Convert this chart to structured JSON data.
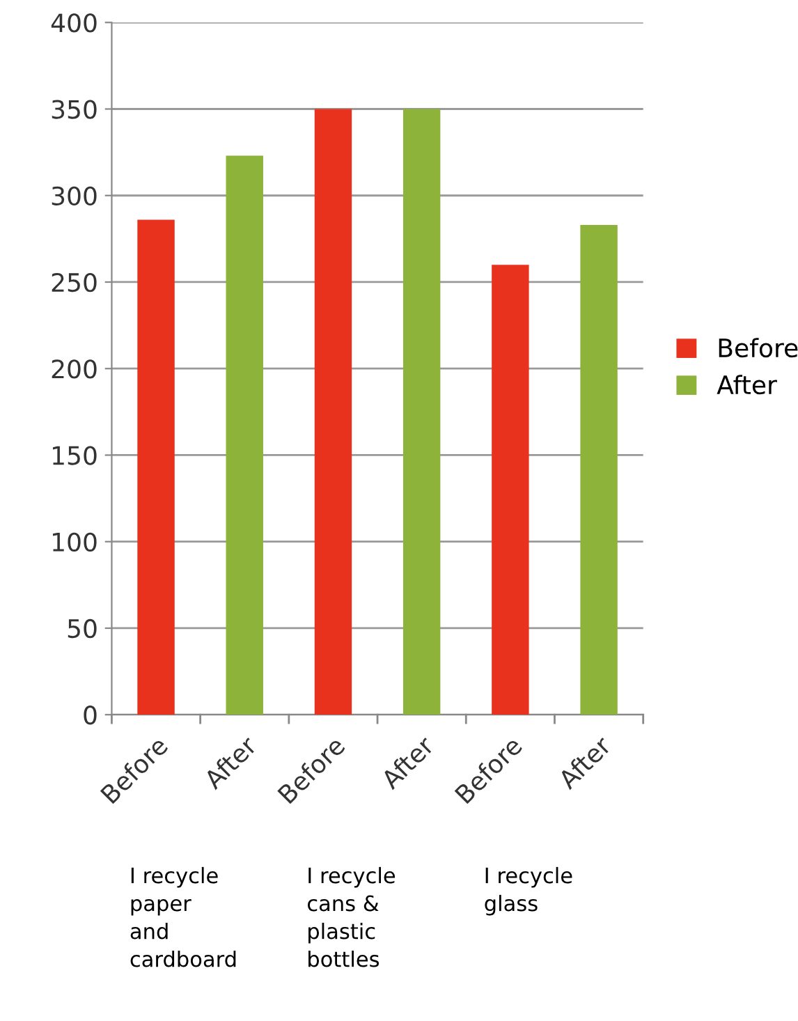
{
  "chart_data": {
    "type": "bar",
    "categories": [
      "Before",
      "After",
      "Before",
      "After",
      "Before",
      "After"
    ],
    "series": [
      {
        "name": "Before",
        "color": "#e8321e",
        "values": [
          286,
          null,
          350,
          null,
          260,
          null
        ]
      },
      {
        "name": "After",
        "color": "#8db33a",
        "values": [
          null,
          323,
          null,
          350,
          null,
          283
        ]
      }
    ],
    "ylim": [
      0,
      400
    ],
    "yticks": [
      0,
      50,
      100,
      150,
      200,
      250,
      300,
      350,
      400
    ],
    "grid": "y",
    "legend": "right",
    "annotations": [
      "I recycle\npaper\nand\ncardboard",
      "I recycle\ncans &\nplastic\nbottles",
      "I recycle\nglass"
    ]
  }
}
